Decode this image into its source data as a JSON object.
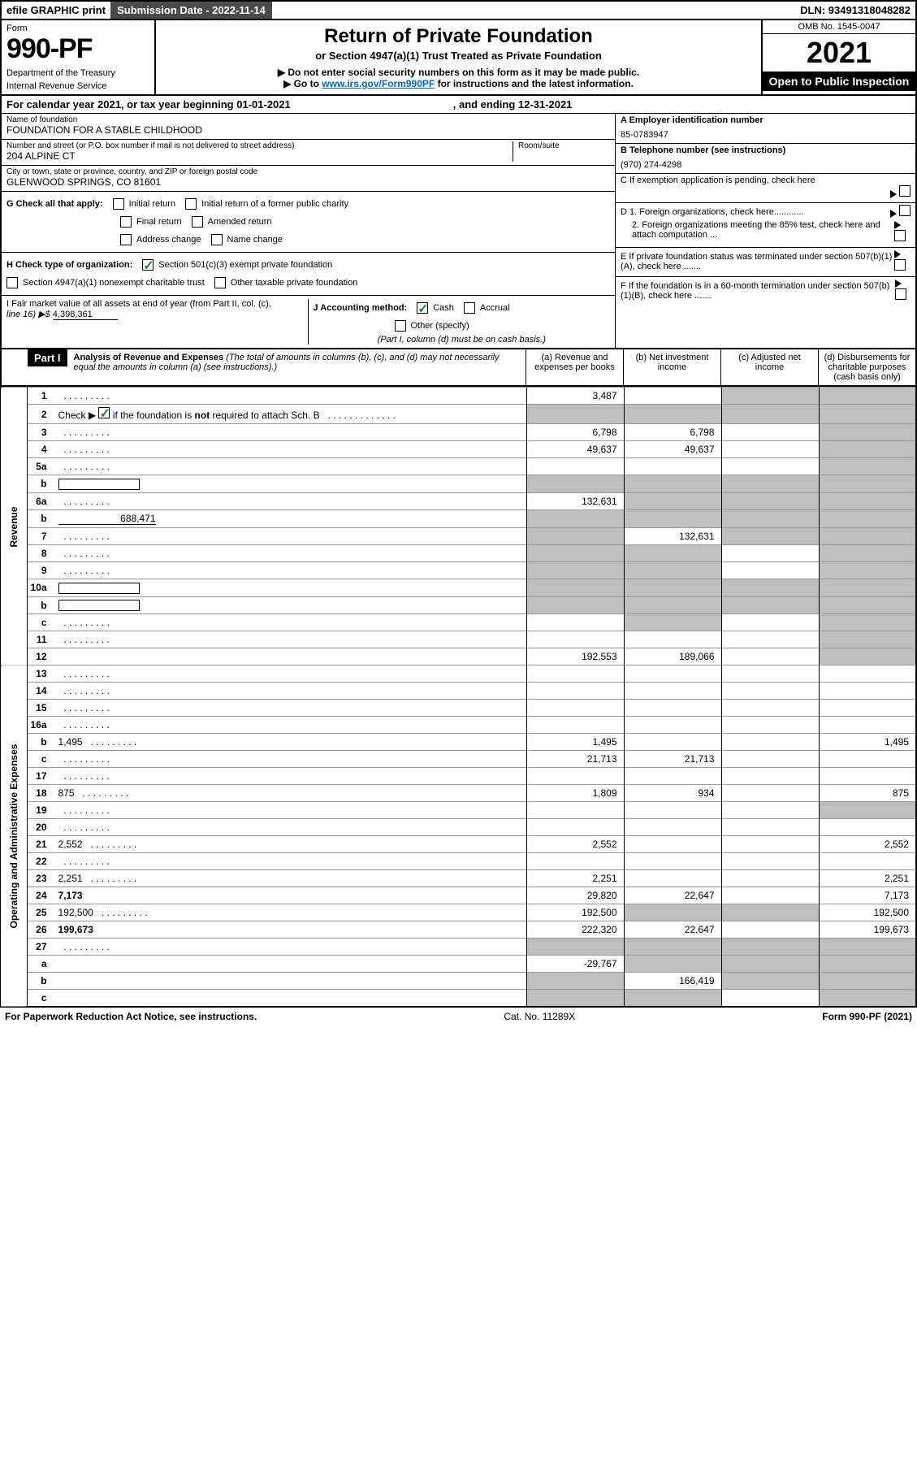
{
  "top": {
    "efile": "efile GRAPHIC print",
    "submission": "Submission Date - 2022-11-14",
    "dln": "DLN: 93491318048282"
  },
  "header": {
    "form_label": "Form",
    "form_number": "990-PF",
    "dept1": "Department of the Treasury",
    "dept2": "Internal Revenue Service",
    "title": "Return of Private Foundation",
    "subtitle": "or Section 4947(a)(1) Trust Treated as Private Foundation",
    "note1": "▶ Do not enter social security numbers on this form as it may be made public.",
    "note2_pre": "▶ Go to ",
    "note2_link": "www.irs.gov/Form990PF",
    "note2_post": " for instructions and the latest information.",
    "omb": "OMB No. 1545-0047",
    "year": "2021",
    "open": "Open to Public Inspection"
  },
  "cal_year": {
    "pre": "For calendar year 2021, or tax year beginning ",
    "begin": "01-01-2021",
    "mid": ", and ending ",
    "end": "12-31-2021"
  },
  "info": {
    "name_label": "Name of foundation",
    "name": "FOUNDATION FOR A STABLE CHILDHOOD",
    "addr_label": "Number and street (or P.O. box number if mail is not delivered to street address)",
    "room_label": "Room/suite",
    "addr": "204 ALPINE CT",
    "city_label": "City or town, state or province, country, and ZIP or foreign postal code",
    "city": "GLENWOOD SPRINGS, CO  81601",
    "a_label": "A Employer identification number",
    "a_val": "85-0783947",
    "b_label": "B Telephone number (see instructions)",
    "b_val": "(970) 274-4298",
    "c_label": "C If exemption application is pending, check here",
    "d1": "D 1. Foreign organizations, check here............",
    "d2": "2. Foreign organizations meeting the 85% test, check here and attach computation ...",
    "e_label": "E  If private foundation status was terminated under section 507(b)(1)(A), check here .......",
    "f_label": "F  If the foundation is in a 60-month termination under section 507(b)(1)(B), check here .......",
    "g_label": "G Check all that apply:",
    "g_opts": [
      "Initial return",
      "Initial return of a former public charity",
      "Final return",
      "Amended return",
      "Address change",
      "Name change"
    ],
    "h_label": "H Check type of organization:",
    "h_opt1": "Section 501(c)(3) exempt private foundation",
    "h_opt2": "Section 4947(a)(1) nonexempt charitable trust",
    "h_opt3": "Other taxable private foundation",
    "i_label": "I Fair market value of all assets at end of year (from Part II, col. (c),",
    "i_line": "line 16) ▶$",
    "i_val": "4,398,361",
    "j_label": "J Accounting method:",
    "j_cash": "Cash",
    "j_accrual": "Accrual",
    "j_other": "Other (specify)",
    "j_note": "(Part I, column (d) must be on cash basis.)"
  },
  "part1": {
    "label": "Part I",
    "title": "Analysis of Revenue and Expenses",
    "note": "(The total of amounts in columns (b), (c), and (d) may not necessarily equal the amounts in column (a) (see instructions).)",
    "col_a": "(a) Revenue and expenses per books",
    "col_b": "(b) Net investment income",
    "col_c": "(c) Adjusted net income",
    "col_d": "(d) Disbursements for charitable purposes (cash basis only)"
  },
  "section_labels": {
    "revenue": "Revenue",
    "expenses": "Operating and Administrative Expenses"
  },
  "rows": [
    {
      "n": "1",
      "d": "",
      "a": "3,487",
      "b": "",
      "c": "",
      "grey": [
        "c",
        "d"
      ]
    },
    {
      "n": "2",
      "d": "",
      "a": "",
      "b": "",
      "c": "",
      "grey": [
        "a",
        "b",
        "c",
        "d"
      ],
      "check": true
    },
    {
      "n": "3",
      "d": "",
      "a": "6,798",
      "b": "6,798",
      "c": "",
      "grey": [
        "d"
      ]
    },
    {
      "n": "4",
      "d": "",
      "a": "49,637",
      "b": "49,637",
      "c": "",
      "grey": [
        "d"
      ]
    },
    {
      "n": "5a",
      "d": "",
      "a": "",
      "b": "",
      "c": "",
      "grey": [
        "d"
      ]
    },
    {
      "n": "b",
      "d": "",
      "a": "",
      "b": "",
      "c": "",
      "grey": [
        "a",
        "b",
        "c",
        "d"
      ],
      "inline": true
    },
    {
      "n": "6a",
      "d": "",
      "a": "132,631",
      "b": "",
      "c": "",
      "grey": [
        "b",
        "c",
        "d"
      ]
    },
    {
      "n": "b",
      "d": "",
      "a": "",
      "b": "",
      "c": "",
      "grey": [
        "a",
        "b",
        "c",
        "d"
      ],
      "inline": true,
      "inline_val": "688,471"
    },
    {
      "n": "7",
      "d": "",
      "a": "",
      "b": "132,631",
      "c": "",
      "grey": [
        "a",
        "c",
        "d"
      ]
    },
    {
      "n": "8",
      "d": "",
      "a": "",
      "b": "",
      "c": "",
      "grey": [
        "a",
        "b",
        "d"
      ]
    },
    {
      "n": "9",
      "d": "",
      "a": "",
      "b": "",
      "c": "",
      "grey": [
        "a",
        "b",
        "d"
      ]
    },
    {
      "n": "10a",
      "d": "",
      "a": "",
      "b": "",
      "c": "",
      "grey": [
        "a",
        "b",
        "c",
        "d"
      ],
      "inline": true
    },
    {
      "n": "b",
      "d": "",
      "a": "",
      "b": "",
      "c": "",
      "grey": [
        "a",
        "b",
        "c",
        "d"
      ],
      "inline": true
    },
    {
      "n": "c",
      "d": "",
      "a": "",
      "b": "",
      "c": "",
      "grey": [
        "b",
        "d"
      ]
    },
    {
      "n": "11",
      "d": "",
      "a": "",
      "b": "",
      "c": "",
      "grey": [
        "d"
      ]
    },
    {
      "n": "12",
      "d": "",
      "a": "192,553",
      "b": "189,066",
      "c": "",
      "grey": [
        "d"
      ],
      "bold": true
    },
    {
      "n": "13",
      "d": "",
      "a": "",
      "b": "",
      "c": ""
    },
    {
      "n": "14",
      "d": "",
      "a": "",
      "b": "",
      "c": ""
    },
    {
      "n": "15",
      "d": "",
      "a": "",
      "b": "",
      "c": ""
    },
    {
      "n": "16a",
      "d": "",
      "a": "",
      "b": "",
      "c": ""
    },
    {
      "n": "b",
      "d": "1,495",
      "a": "1,495",
      "b": "",
      "c": ""
    },
    {
      "n": "c",
      "d": "",
      "a": "21,713",
      "b": "21,713",
      "c": ""
    },
    {
      "n": "17",
      "d": "",
      "a": "",
      "b": "",
      "c": ""
    },
    {
      "n": "18",
      "d": "875",
      "a": "1,809",
      "b": "934",
      "c": ""
    },
    {
      "n": "19",
      "d": "",
      "a": "",
      "b": "",
      "c": "",
      "grey": [
        "d"
      ]
    },
    {
      "n": "20",
      "d": "",
      "a": "",
      "b": "",
      "c": ""
    },
    {
      "n": "21",
      "d": "2,552",
      "a": "2,552",
      "b": "",
      "c": ""
    },
    {
      "n": "22",
      "d": "",
      "a": "",
      "b": "",
      "c": ""
    },
    {
      "n": "23",
      "d": "2,251",
      "a": "2,251",
      "b": "",
      "c": ""
    },
    {
      "n": "24",
      "d": "7,173",
      "a": "29,820",
      "b": "22,647",
      "c": "",
      "bold": true
    },
    {
      "n": "25",
      "d": "192,500",
      "a": "192,500",
      "b": "",
      "c": "",
      "grey": [
        "b",
        "c"
      ]
    },
    {
      "n": "26",
      "d": "199,673",
      "a": "222,320",
      "b": "22,647",
      "c": "",
      "bold": true
    },
    {
      "n": "27",
      "d": "",
      "a": "",
      "b": "",
      "c": "",
      "grey": [
        "a",
        "b",
        "c",
        "d"
      ]
    },
    {
      "n": "a",
      "d": "",
      "a": "-29,767",
      "b": "",
      "c": "",
      "grey": [
        "b",
        "c",
        "d"
      ],
      "bold": true
    },
    {
      "n": "b",
      "d": "",
      "a": "",
      "b": "166,419",
      "c": "",
      "grey": [
        "a",
        "c",
        "d"
      ],
      "bold": true
    },
    {
      "n": "c",
      "d": "",
      "a": "",
      "b": "",
      "c": "",
      "grey": [
        "a",
        "b",
        "d"
      ],
      "bold": true
    }
  ],
  "footer": {
    "left": "For Paperwork Reduction Act Notice, see instructions.",
    "mid": "Cat. No. 11289X",
    "right": "Form 990-PF (2021)"
  }
}
